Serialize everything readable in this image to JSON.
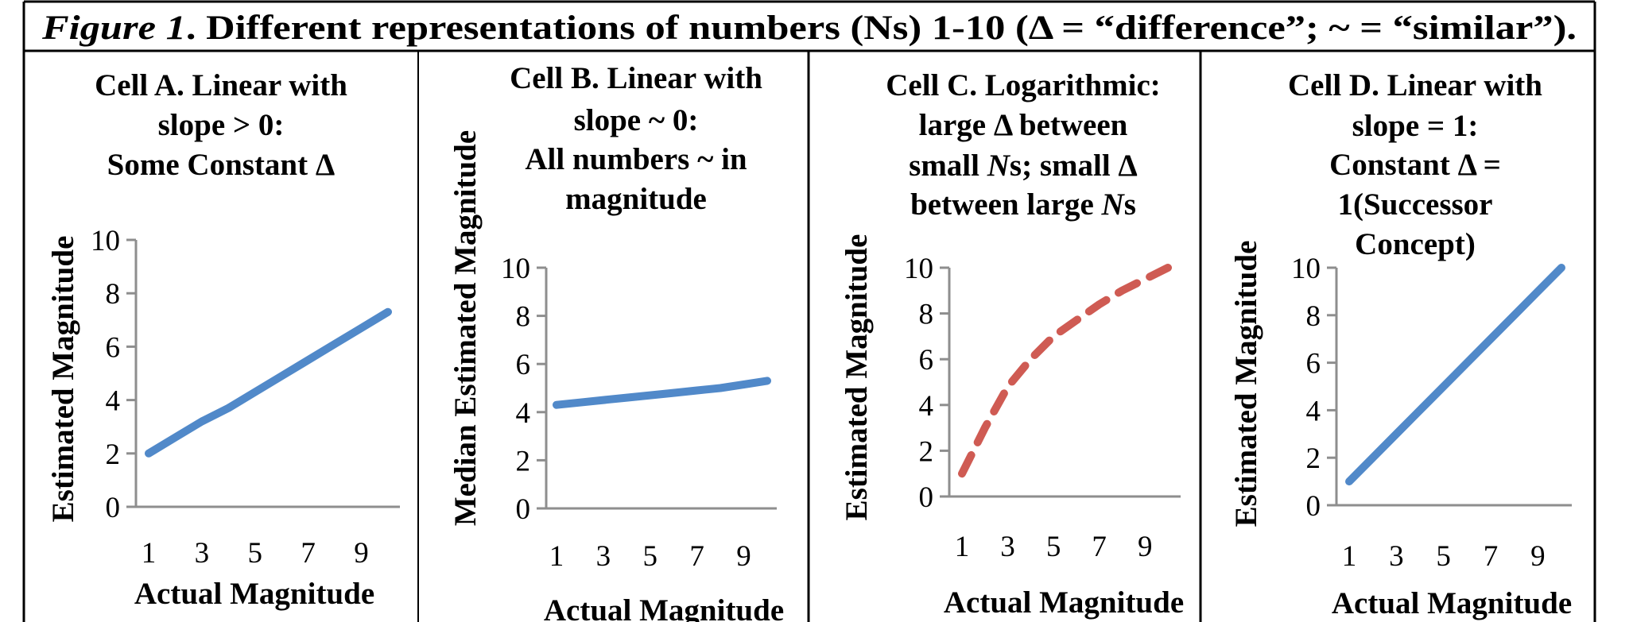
{
  "figure": {
    "title_italic": "Figure 1",
    "title_rest": ". Different representations of numbers (Ns) 1-10 (Δ = “difference”; ~ = “similar”)."
  },
  "colors": {
    "blue": "#5189c9",
    "red": "#cf5b53",
    "axis": "#8e8e8e",
    "border": "#000000"
  },
  "chart_data": [
    {
      "type": "line",
      "id": "A",
      "title_lines": [
        "Cell A. Linear with",
        "slope > 0:",
        "Some Constant Δ"
      ],
      "xlabel": "Actual Magnitude",
      "ylabel": "Estimated Magnitude",
      "x": [
        1,
        2,
        3,
        4,
        5,
        6,
        7,
        8,
        9,
        10
      ],
      "series": [
        {
          "name": "Cell A",
          "values": [
            2,
            2.6,
            3.2,
            3.7,
            4.3,
            4.9,
            5.5,
            6.1,
            6.7,
            7.3
          ],
          "color": "#5189c9",
          "dashed": false
        }
      ],
      "xticks": [
        "1",
        "3",
        "5",
        "7",
        "9"
      ],
      "yticks": [
        "0",
        "2",
        "4",
        "6",
        "8",
        "10"
      ],
      "xlim": [
        1,
        10
      ],
      "ylim": [
        0,
        10
      ],
      "grid": false,
      "legend": "none"
    },
    {
      "type": "line",
      "id": "B",
      "title_lines": [
        "Cell B. Linear with",
        "slope ~ 0:",
        "All numbers ~ in",
        "magnitude"
      ],
      "xlabel": "Actual Magnitude",
      "ylabel": "Median Estimated Magnitude",
      "x": [
        1,
        2,
        3,
        4,
        5,
        6,
        7,
        8,
        9,
        10
      ],
      "series": [
        {
          "name": "Cell B",
          "values": [
            4.3,
            4.4,
            4.5,
            4.6,
            4.7,
            4.8,
            4.9,
            5.0,
            5.15,
            5.3
          ],
          "color": "#5189c9",
          "dashed": false
        }
      ],
      "xticks": [
        "1",
        "3",
        "5",
        "7",
        "9"
      ],
      "yticks": [
        "0",
        "2",
        "4",
        "6",
        "8",
        "10"
      ],
      "xlim": [
        1,
        10
      ],
      "ylim": [
        0,
        10
      ],
      "grid": false,
      "legend": "none"
    },
    {
      "type": "line",
      "id": "C",
      "title_lines": [
        "Cell C. Logarithmic:",
        "large Δ  between",
        "small |N|s; small Δ",
        "between large |N|s"
      ],
      "xlabel": "Actual Magnitude",
      "ylabel": "Estimated Magnitude",
      "x": [
        1,
        2,
        3,
        4,
        5,
        6,
        7,
        8,
        9,
        10
      ],
      "series": [
        {
          "name": "Cell C",
          "values": [
            1,
            3,
            4.8,
            6,
            7,
            7.7,
            8.4,
            9,
            9.5,
            10
          ],
          "color": "#cf5b53",
          "dashed": true
        }
      ],
      "xticks": [
        "1",
        "3",
        "5",
        "7",
        "9"
      ],
      "yticks": [
        "0",
        "2",
        "4",
        "6",
        "8",
        "10"
      ],
      "xlim": [
        1,
        10
      ],
      "ylim": [
        0,
        10
      ],
      "grid": false,
      "legend": "none"
    },
    {
      "type": "line",
      "id": "D",
      "title_lines": [
        "Cell D. Linear with",
        "slope = 1:",
        "Constant Δ =",
        "1(Successor",
        "Concept)"
      ],
      "xlabel": "Actual Magnitude",
      "ylabel": "Estimated Magnitude",
      "x": [
        1,
        2,
        3,
        4,
        5,
        6,
        7,
        8,
        9,
        10
      ],
      "series": [
        {
          "name": "Cell D",
          "values": [
            1,
            2,
            3,
            4,
            5,
            6,
            7,
            8,
            9,
            10
          ],
          "color": "#5189c9",
          "dashed": false
        }
      ],
      "xticks": [
        "1",
        "3",
        "5",
        "7",
        "9"
      ],
      "yticks": [
        "0",
        "2",
        "4",
        "6",
        "8",
        "10"
      ],
      "xlim": [
        1,
        10
      ],
      "ylim": [
        0,
        10
      ],
      "grid": false,
      "legend": "none"
    }
  ]
}
